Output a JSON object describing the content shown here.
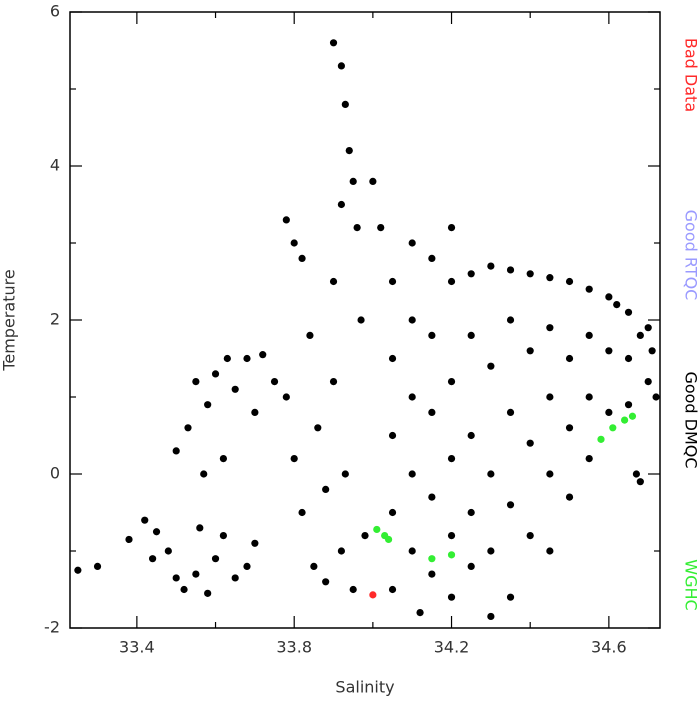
{
  "chart_data": {
    "type": "scatter",
    "x_label": "Salinity",
    "y_label": "Temperature",
    "xlim": [
      33.23,
      34.73
    ],
    "ylim": [
      -2,
      6
    ],
    "xticks": [
      33.4,
      33.8,
      34.2,
      34.6
    ],
    "xminor": [
      33.6,
      34.0,
      34.4
    ],
    "yticks": [
      -2,
      0,
      2,
      4,
      6
    ],
    "yminor": [
      -1,
      1,
      3,
      5
    ],
    "series": [
      {
        "name": "Bad Data",
        "color": "#ff2a2a",
        "x": [
          34.0
        ],
        "values": [
          -1.57
        ]
      },
      {
        "name": "Good RTQC",
        "color": "#9a9aff",
        "x": [],
        "values": []
      },
      {
        "name": "Good DMQC",
        "color": "#000000",
        "x": [
          33.25,
          33.3,
          33.38,
          33.42,
          33.45,
          33.48,
          33.5,
          33.52,
          33.55,
          33.58,
          33.6,
          33.62,
          33.65,
          33.68,
          33.7,
          33.44,
          33.56,
          33.5,
          33.53,
          33.55,
          33.58,
          33.6,
          33.63,
          33.65,
          33.68,
          33.7,
          33.62,
          33.57,
          33.72,
          33.75,
          33.78,
          33.8,
          33.82,
          33.78,
          33.8,
          33.82,
          33.85,
          33.88,
          33.84,
          33.86,
          33.9,
          33.92,
          33.9,
          33.92,
          33.93,
          33.94,
          33.95,
          33.96,
          33.88,
          33.9,
          33.93,
          33.95,
          33.97,
          33.98,
          33.92,
          34.0,
          34.02,
          34.05,
          34.05,
          34.05,
          34.05,
          34.05,
          34.1,
          34.1,
          34.1,
          34.1,
          34.1,
          34.12,
          34.15,
          34.15,
          34.15,
          34.15,
          34.15,
          34.2,
          34.2,
          34.2,
          34.2,
          34.2,
          34.2,
          34.25,
          34.25,
          34.25,
          34.25,
          34.25,
          34.3,
          34.3,
          34.3,
          34.3,
          34.3,
          34.35,
          34.35,
          34.35,
          34.35,
          34.35,
          34.4,
          34.4,
          34.4,
          34.4,
          34.45,
          34.45,
          34.45,
          34.45,
          34.45,
          34.5,
          34.5,
          34.5,
          34.5,
          34.55,
          34.55,
          34.55,
          34.55,
          34.6,
          34.6,
          34.6,
          34.62,
          34.65,
          34.65,
          34.65,
          34.67,
          34.68,
          34.7,
          34.7,
          34.71,
          34.72,
          34.68
        ],
        "values": [
          -1.25,
          -1.2,
          -0.85,
          -0.6,
          -0.75,
          -1.0,
          -1.35,
          -1.5,
          -1.3,
          -1.55,
          -1.1,
          -0.8,
          -1.35,
          -1.2,
          -0.9,
          -1.1,
          -0.7,
          0.3,
          0.6,
          1.2,
          0.9,
          1.3,
          1.5,
          1.1,
          1.5,
          0.8,
          0.2,
          0.0,
          1.55,
          1.2,
          3.3,
          3.0,
          2.8,
          1.0,
          0.2,
          -0.5,
          -1.2,
          -1.4,
          1.8,
          0.6,
          2.5,
          3.5,
          5.6,
          5.3,
          4.8,
          4.2,
          3.8,
          3.2,
          -0.2,
          1.2,
          0.0,
          -1.5,
          2.0,
          -0.8,
          -1.0,
          3.8,
          3.2,
          2.5,
          1.5,
          0.5,
          -0.5,
          -1.5,
          3.0,
          2.0,
          1.0,
          0.0,
          -1.0,
          -1.8,
          2.8,
          1.8,
          0.8,
          -0.3,
          -1.3,
          3.2,
          2.5,
          1.2,
          0.2,
          -0.8,
          -1.6,
          2.6,
          1.8,
          0.5,
          -0.5,
          -1.2,
          2.7,
          1.4,
          0.0,
          -1.0,
          -1.85,
          2.65,
          2.0,
          0.8,
          -0.4,
          -1.6,
          2.6,
          1.6,
          0.4,
          -0.8,
          2.55,
          1.9,
          1.0,
          0.0,
          -1.0,
          2.5,
          1.5,
          0.6,
          -0.3,
          2.4,
          1.8,
          1.0,
          0.2,
          2.3,
          1.6,
          0.8,
          2.2,
          2.1,
          1.5,
          0.9,
          0.0,
          1.8,
          1.9,
          1.2,
          1.6,
          1.0,
          -0.1
        ]
      },
      {
        "name": "WGHC",
        "color": "#33ee33",
        "x": [
          34.01,
          34.03,
          34.04,
          34.15,
          34.2,
          34.58,
          34.61,
          34.64,
          34.66
        ],
        "values": [
          -0.72,
          -0.8,
          -0.85,
          -1.1,
          -1.05,
          0.45,
          0.6,
          0.7,
          0.75
        ]
      }
    ]
  }
}
